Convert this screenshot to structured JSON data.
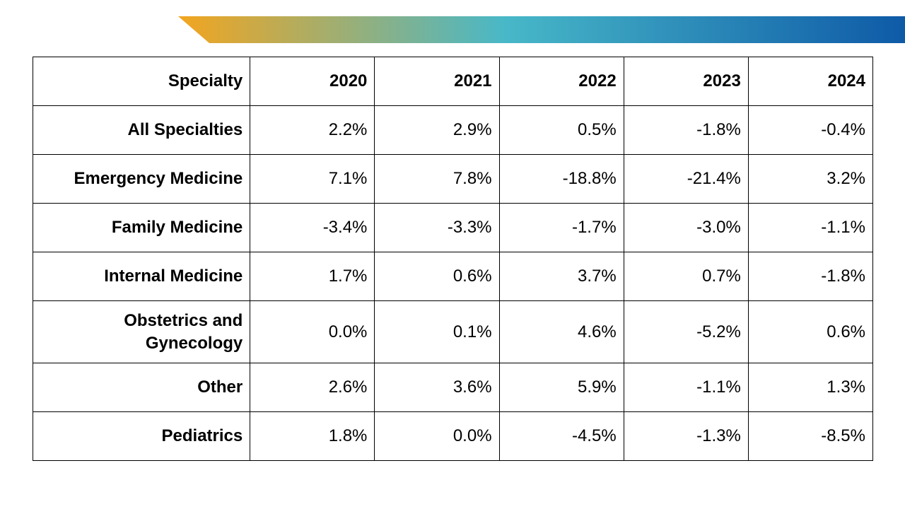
{
  "banner": {
    "gradient_colors": [
      "#f3a51f",
      "#48b8c8",
      "#0e5aa7"
    ]
  },
  "table": {
    "headers": [
      "Specialty",
      "2020",
      "2021",
      "2022",
      "2023",
      "2024"
    ],
    "rows": [
      {
        "specialty": "All Specialties",
        "values": [
          "2.2%",
          "2.9%",
          "0.5%",
          "-1.8%",
          "-0.4%"
        ]
      },
      {
        "specialty": "Emergency Medicine",
        "values": [
          "7.1%",
          "7.8%",
          "-18.8%",
          "-21.4%",
          "3.2%"
        ]
      },
      {
        "specialty": "Family Medicine",
        "values": [
          "-3.4%",
          "-3.3%",
          "-1.7%",
          "-3.0%",
          "-1.1%"
        ]
      },
      {
        "specialty": "Internal Medicine",
        "values": [
          "1.7%",
          "0.6%",
          "3.7%",
          "0.7%",
          "-1.8%"
        ]
      },
      {
        "specialty": "Obstetrics and Gynecology",
        "values": [
          "0.0%",
          "0.1%",
          "4.6%",
          "-5.2%",
          "0.6%"
        ]
      },
      {
        "specialty": "Other",
        "values": [
          "2.6%",
          "3.6%",
          "5.9%",
          "-1.1%",
          "1.3%"
        ]
      },
      {
        "specialty": "Pediatrics",
        "values": [
          "1.8%",
          "0.0%",
          "-4.5%",
          "-1.3%",
          "-8.5%"
        ]
      }
    ]
  }
}
